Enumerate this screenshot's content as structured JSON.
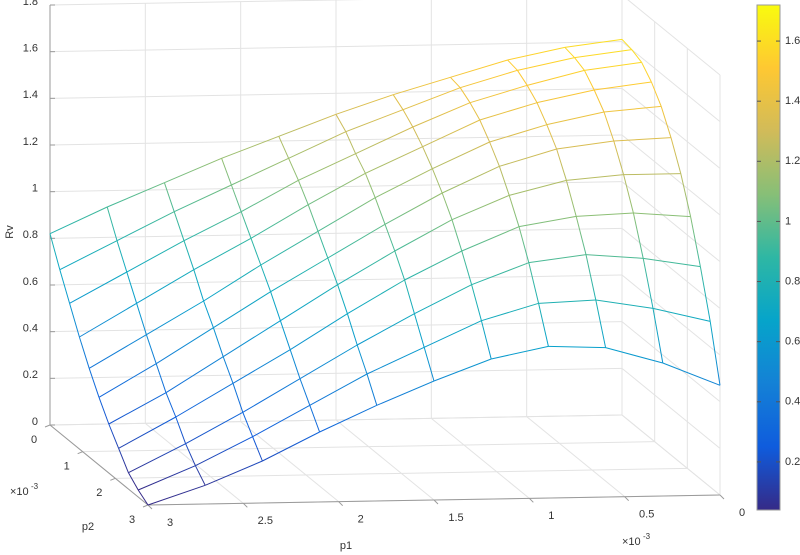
{
  "chart_data": {
    "type": "mesh",
    "xlabel": "p1",
    "ylabel": "p2",
    "zlabel": "Rv",
    "x_exponent": {
      "base": "×10",
      "power": "-3"
    },
    "y_exponent": {
      "base": "×10",
      "power": "-3"
    },
    "x": [
      0,
      0.3,
      0.6,
      0.9,
      1.2,
      1.5,
      1.8,
      2.1,
      2.4,
      2.7,
      3
    ],
    "y": [
      0,
      0.3,
      0.6,
      0.9,
      1.2,
      1.5,
      1.8,
      2.1,
      2.4,
      2.7,
      3
    ],
    "z": [
      [
        1.61,
        1.58,
        1.53,
        1.46,
        1.39,
        1.31,
        1.22,
        1.13,
        1.03,
        0.93,
        0.82
      ],
      [
        1.6,
        1.57,
        1.52,
        1.45,
        1.36,
        1.27,
        1.16,
        1.05,
        0.94,
        0.82,
        0.7
      ],
      [
        1.58,
        1.55,
        1.49,
        1.42,
        1.32,
        1.21,
        1.1,
        0.97,
        0.85,
        0.72,
        0.59
      ],
      [
        1.53,
        1.5,
        1.45,
        1.38,
        1.27,
        1.16,
        1.03,
        0.89,
        0.76,
        0.62,
        0.48
      ],
      [
        1.46,
        1.44,
        1.39,
        1.32,
        1.21,
        1.09,
        0.95,
        0.81,
        0.66,
        0.52,
        0.38
      ],
      [
        1.36,
        1.35,
        1.32,
        1.25,
        1.14,
        1.01,
        0.87,
        0.73,
        0.58,
        0.43,
        0.29
      ],
      [
        1.24,
        1.24,
        1.22,
        1.16,
        1.06,
        0.93,
        0.79,
        0.64,
        0.49,
        0.34,
        0.21
      ],
      [
        1.09,
        1.11,
        1.1,
        1.06,
        0.96,
        0.84,
        0.7,
        0.55,
        0.41,
        0.27,
        0.14
      ],
      [
        0.91,
        0.95,
        0.97,
        0.94,
        0.85,
        0.73,
        0.6,
        0.46,
        0.32,
        0.19,
        0.07
      ],
      [
        0.71,
        0.77,
        0.81,
        0.8,
        0.73,
        0.62,
        0.51,
        0.38,
        0.25,
        0.13,
        0.03
      ],
      [
        0.47,
        0.57,
        0.64,
        0.65,
        0.6,
        0.51,
        0.41,
        0.3,
        0.18,
        0.08,
        0
      ]
    ],
    "xlim": [
      0,
      3
    ],
    "ylim": [
      0,
      3
    ],
    "zlim": [
      0,
      1.8
    ],
    "xticks": [
      0,
      0.5,
      1,
      1.5,
      2,
      2.5,
      3
    ],
    "yticks": [
      0,
      1,
      2,
      3
    ],
    "zticks": [
      0,
      0.2,
      0.4,
      0.6,
      0.8,
      1,
      1.2,
      1.4,
      1.6,
      1.8
    ],
    "grid": true,
    "colormap": [
      "#352a87",
      "#0f5cdd",
      "#1481d6",
      "#06a4ca",
      "#2eb7a4",
      "#87bf77",
      "#d1bb59",
      "#fec832",
      "#f9fb0e"
    ],
    "colorbar": {
      "clim": [
        0.04,
        1.72
      ],
      "ticks": [
        0.2,
        0.4,
        0.6,
        0.8,
        1,
        1.2,
        1.4,
        1.6
      ]
    }
  }
}
